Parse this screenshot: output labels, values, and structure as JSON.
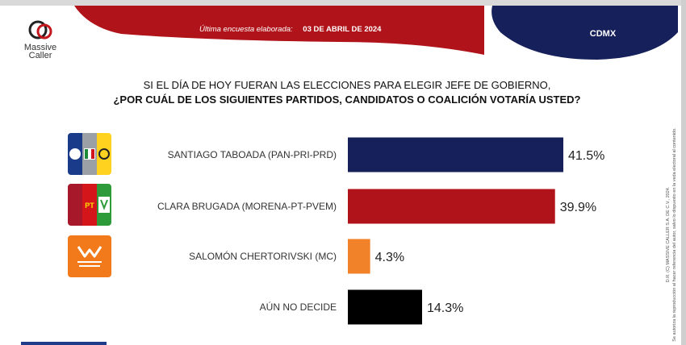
{
  "header": {
    "brand_line1": "Massive",
    "brand_line2": "Caller",
    "date_label": "Última encuesta elaborada:",
    "date_value": "03 DE ABRIL DE 2024",
    "region": "CDMX",
    "colors": {
      "red": "#b0141a",
      "navy": "#16205a"
    }
  },
  "question": {
    "line1": "SI EL DÍA DE HOY FUERAN LAS ELECCIONES PARA ELEGIR JEFE DE GOBIERNO,",
    "line2": "¿POR CUÁL DE LOS SIGUIENTES PARTIDOS, CANDIDATOS O COALICIÓN VOTARÍA USTED?"
  },
  "side_note": {
    "line1": "D.R. (C) MASSIVE CALLER S.A. DE C.V., 2024.",
    "line2": "Se autoriza la reproducción al hacer referencia del autor, salvo lo dispuesto en la veda electoral al contenido."
  },
  "party_logos": [
    {
      "name": "pan-pri-prd-logo",
      "text": [
        "PAN",
        "PRI",
        "PRD"
      ],
      "colors": [
        "#1a3a8a",
        "#9aa0a6",
        "#ffd21f"
      ]
    },
    {
      "name": "morena-pt-pvem-logo",
      "text": [
        "morena",
        "PT",
        "PVEM"
      ],
      "colors": [
        "#a6182a",
        "#d4161b",
        "#2e9b3a"
      ]
    },
    {
      "name": "mc-logo",
      "text": [
        "MOVIMIENTO",
        "CIUDADANO"
      ],
      "colors": [
        "#f27a1a"
      ]
    }
  ],
  "chart_data": {
    "type": "bar",
    "orientation": "horizontal",
    "title": "",
    "categories": [
      "SANTIAGO TABOADA (PAN-PRI-PRD)",
      "CLARA BRUGADA (MORENA-PT-PVEM)",
      "SALOMÓN CHERTORIVSKI (MC)",
      "AÚN NO DECIDE"
    ],
    "values": [
      41.5,
      39.9,
      4.3,
      14.3
    ],
    "value_labels": [
      "41.5%",
      "39.9%",
      "4.3%",
      "14.3%"
    ],
    "colors": [
      "#16205a",
      "#b0141a",
      "#f28229",
      "#000000"
    ],
    "xlim": [
      0,
      41.5
    ],
    "grid": false,
    "legend": "none"
  }
}
